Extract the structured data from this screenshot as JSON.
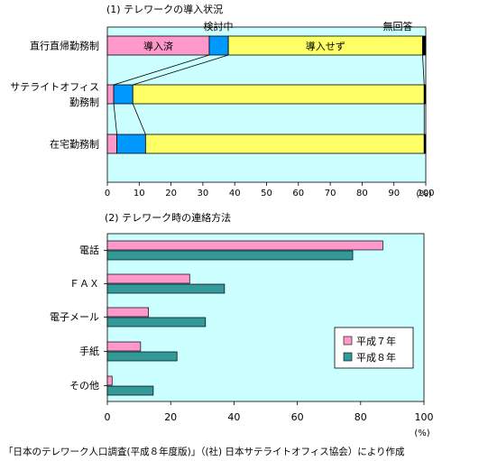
{
  "chart_data": [
    {
      "type": "bar",
      "orientation": "horizontal",
      "stacked": true,
      "title": "(1) テレワークの導入状況",
      "categories": [
        "直行直帰勤務制",
        "サテライトオフィス勤務制",
        "在宅勤務制"
      ],
      "category_lines": [
        [
          "直行直帰勤務制"
        ],
        [
          "サテライトオフィス",
          "勤務制"
        ],
        [
          "在宅勤務制"
        ]
      ],
      "series": [
        {
          "name": "導入済",
          "values": [
            32,
            2,
            3
          ],
          "color": "#ff99cc"
        },
        {
          "name": "検討中",
          "values": [
            6,
            6,
            9
          ],
          "color": "#0099ff"
        },
        {
          "name": "導入せず",
          "values": [
            61,
            91.5,
            87.5
          ],
          "color": "#ffff66"
        },
        {
          "name": "無回答",
          "values": [
            1,
            0.5,
            0.5
          ],
          "color": "#000000"
        }
      ],
      "bar_labels": {
        "導入済": "導入済",
        "導入せず": "導入せず"
      },
      "top_labels": {
        "検討中": "検討中",
        "無回答": "無回答"
      },
      "xlim": [
        0,
        100
      ],
      "xticks": [
        0,
        10,
        20,
        30,
        40,
        50,
        60,
        70,
        80,
        90,
        100
      ],
      "unit": "(%)",
      "plot_background": "#ccffff"
    },
    {
      "type": "bar",
      "orientation": "horizontal",
      "title": "(2) テレワーク時の連絡方法",
      "categories": [
        "電話",
        "ＦＡＸ",
        "電子メール",
        "手紙",
        "その他"
      ],
      "series": [
        {
          "name": "平成７年",
          "values": [
            87,
            26,
            13,
            10.5,
            1.5
          ],
          "color": "#ff99cc"
        },
        {
          "name": "平成８年",
          "values": [
            77.5,
            37,
            31,
            22,
            14.5
          ],
          "color": "#339999"
        }
      ],
      "xlim": [
        0,
        100
      ],
      "xticks": [
        0,
        20,
        40,
        60,
        80,
        100
      ],
      "unit": "(%)",
      "legend_position": "bottom-right",
      "plot_background": "#ccffff"
    }
  ],
  "source_note": "「日本のテレワーク人口調査(平成８年度版)」（(社) 日本サテライトオフィス協会）により作成"
}
